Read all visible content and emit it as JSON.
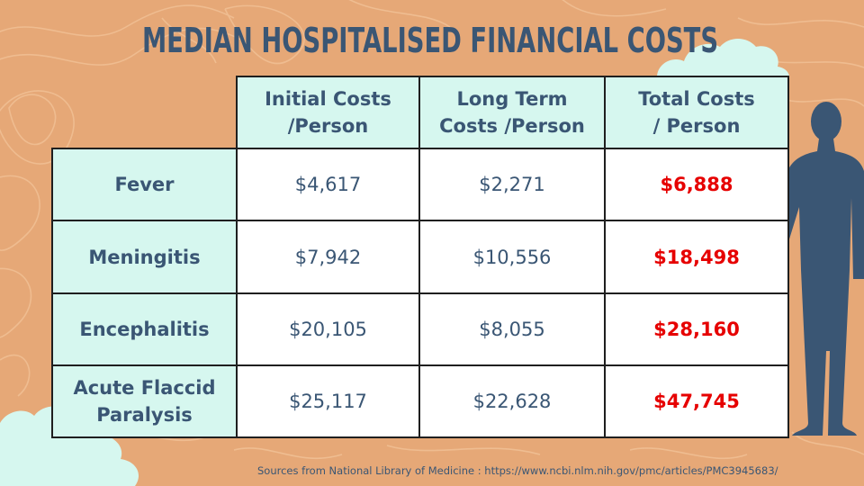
{
  "title": "MEDIAN HOSPITALISED FINANCIAL COSTS",
  "colors": {
    "background": "#E6A877",
    "contour_lines": "#F0BF93",
    "cloud": "#D6F7EF",
    "header_fill": "#D6F7EF",
    "text_dark": "#3A5674",
    "total_red": "#E60000",
    "figure": "#3A5674"
  },
  "table": {
    "columns": [
      "Initial Costs /Person",
      "Long Term Costs /Person",
      "Total Costs / Person"
    ],
    "column_lines": [
      [
        "Initial Costs",
        "/Person"
      ],
      [
        "Long Term",
        "Costs /Person"
      ],
      [
        "Total Costs",
        "/ Person"
      ]
    ],
    "rows": [
      {
        "label_lines": [
          "Fever"
        ],
        "initial": "$4,617",
        "long_term": "$2,271",
        "total": "$6,888"
      },
      {
        "label_lines": [
          "Meningitis"
        ],
        "initial": "$7,942",
        "long_term": "$10,556",
        "total": "$18,498"
      },
      {
        "label_lines": [
          "Encephalitis"
        ],
        "initial": "$20,105",
        "long_term": "$8,055",
        "total": "$28,160"
      },
      {
        "label_lines": [
          "Acute Flaccid",
          "Paralysis"
        ],
        "initial": "$25,117",
        "long_term": "$22,628",
        "total": "$47,745"
      }
    ]
  },
  "decorations": {
    "figure_icon": "human-silhouette-icon",
    "cloud_icon": "cloud-icon"
  },
  "source": "Sources from  National Library of Medicine : https://www.ncbi.nlm.nih.gov/pmc/articles/PMC3945683/"
}
